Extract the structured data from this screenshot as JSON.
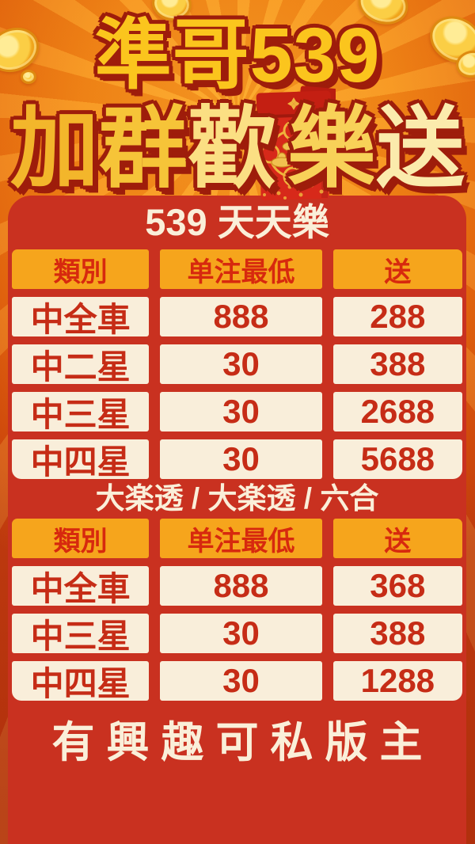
{
  "poster": {
    "title_line1": "準哥539",
    "title_line2": [
      {
        "ch": "加",
        "color": "#F3B62B"
      },
      {
        "ch": "群",
        "color": "#F6C438"
      },
      {
        "ch": "歡",
        "color": "#FBDF83"
      },
      {
        "ch": "樂",
        "color": "#F8D158"
      },
      {
        "ch": "送",
        "color": "#FBEBAC"
      }
    ],
    "icons": {
      "envelope": "red-envelope-with-gold-ingots",
      "coins": "gold-coins"
    },
    "panel": {
      "sections": [
        {
          "title": "539 天天樂",
          "headers": [
            "類別",
            "单注最低",
            "送"
          ],
          "rows": [
            [
              "中全車",
              "888",
              "288"
            ],
            [
              "中二星",
              "30",
              "388"
            ],
            [
              "中三星",
              "30",
              "2688"
            ],
            [
              "中四星",
              "30",
              "5688"
            ]
          ]
        },
        {
          "title": "大楽透 / 大楽透 / 六合",
          "headers": [
            "類別",
            "单注最低",
            "送"
          ],
          "rows": [
            [
              "中全車",
              "888",
              "368"
            ],
            [
              "中三星",
              "30",
              "388"
            ],
            [
              "中四星",
              "30",
              "1288"
            ]
          ]
        }
      ],
      "footer": "有興趣可私版主"
    },
    "colors": {
      "background_orange": "#F08018",
      "panel_red": "#C93120",
      "header_amber": "#F6A51C",
      "header_text_red": "#D7290E",
      "cell_cream": "#F9EEDA",
      "cell_text_red": "#C62C16",
      "title_yellow": "#FBC51D",
      "title_outline": "#9E1D0B",
      "cream_text": "#FAEFD9",
      "gold": "#EFB33C"
    }
  }
}
